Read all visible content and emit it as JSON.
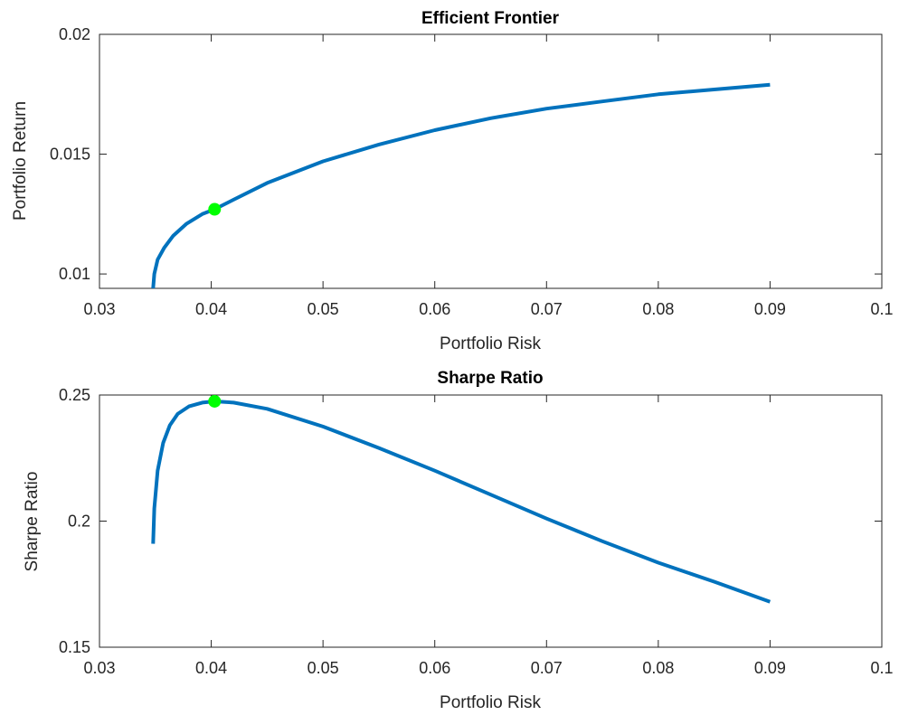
{
  "chart_data": [
    {
      "type": "line",
      "title": "Efficient Frontier",
      "xlabel": "Portfolio Risk",
      "ylabel": "Portfolio Return",
      "xlim": [
        0.03,
        0.1
      ],
      "ylim": [
        0.0094,
        0.02
      ],
      "xticks": [
        "0.03",
        "0.04",
        "0.05",
        "0.06",
        "0.07",
        "0.08",
        "0.09",
        "0.1"
      ],
      "yticks": [
        "0.01",
        "0.015",
        "0.02"
      ],
      "grid": false,
      "colors": {
        "line": "#0072BD",
        "marker": "#00FF00"
      },
      "series": [
        {
          "x": [
            0.0348,
            0.0349,
            0.0352,
            0.0358,
            0.0366,
            0.0378,
            0.0392,
            0.0403,
            0.042,
            0.045,
            0.05,
            0.055,
            0.06,
            0.065,
            0.07,
            0.075,
            0.08,
            0.085,
            0.09
          ],
          "y": [
            0.0094,
            0.01,
            0.0106,
            0.0111,
            0.0116,
            0.0121,
            0.0125,
            0.0127,
            0.0131,
            0.0138,
            0.0147,
            0.0154,
            0.016,
            0.0165,
            0.0169,
            0.0172,
            0.0175,
            0.0177,
            0.0179
          ]
        }
      ],
      "highlight_point": {
        "x": 0.0403,
        "y": 0.0127
      }
    },
    {
      "type": "line",
      "title": "Sharpe Ratio",
      "xlabel": "Portfolio Risk",
      "ylabel": "Sharpe Ratio",
      "xlim": [
        0.03,
        0.1
      ],
      "ylim": [
        0.15,
        0.25
      ],
      "xticks": [
        "0.03",
        "0.04",
        "0.05",
        "0.06",
        "0.07",
        "0.08",
        "0.09",
        "0.1"
      ],
      "yticks": [
        "0.15",
        "0.2",
        "0.25"
      ],
      "grid": false,
      "colors": {
        "line": "#0072BD",
        "marker": "#00FF00"
      },
      "series": [
        {
          "x": [
            0.0348,
            0.0349,
            0.0352,
            0.0357,
            0.0363,
            0.037,
            0.038,
            0.0392,
            0.0403,
            0.042,
            0.045,
            0.05,
            0.055,
            0.06,
            0.065,
            0.07,
            0.075,
            0.08,
            0.085,
            0.09
          ],
          "y": [
            0.191,
            0.205,
            0.22,
            0.231,
            0.238,
            0.2425,
            0.2455,
            0.247,
            0.2475,
            0.247,
            0.2445,
            0.2375,
            0.229,
            0.22,
            0.2105,
            0.201,
            0.192,
            0.1835,
            0.176,
            0.168
          ]
        }
      ],
      "highlight_point": {
        "x": 0.0403,
        "y": 0.2475
      }
    }
  ]
}
